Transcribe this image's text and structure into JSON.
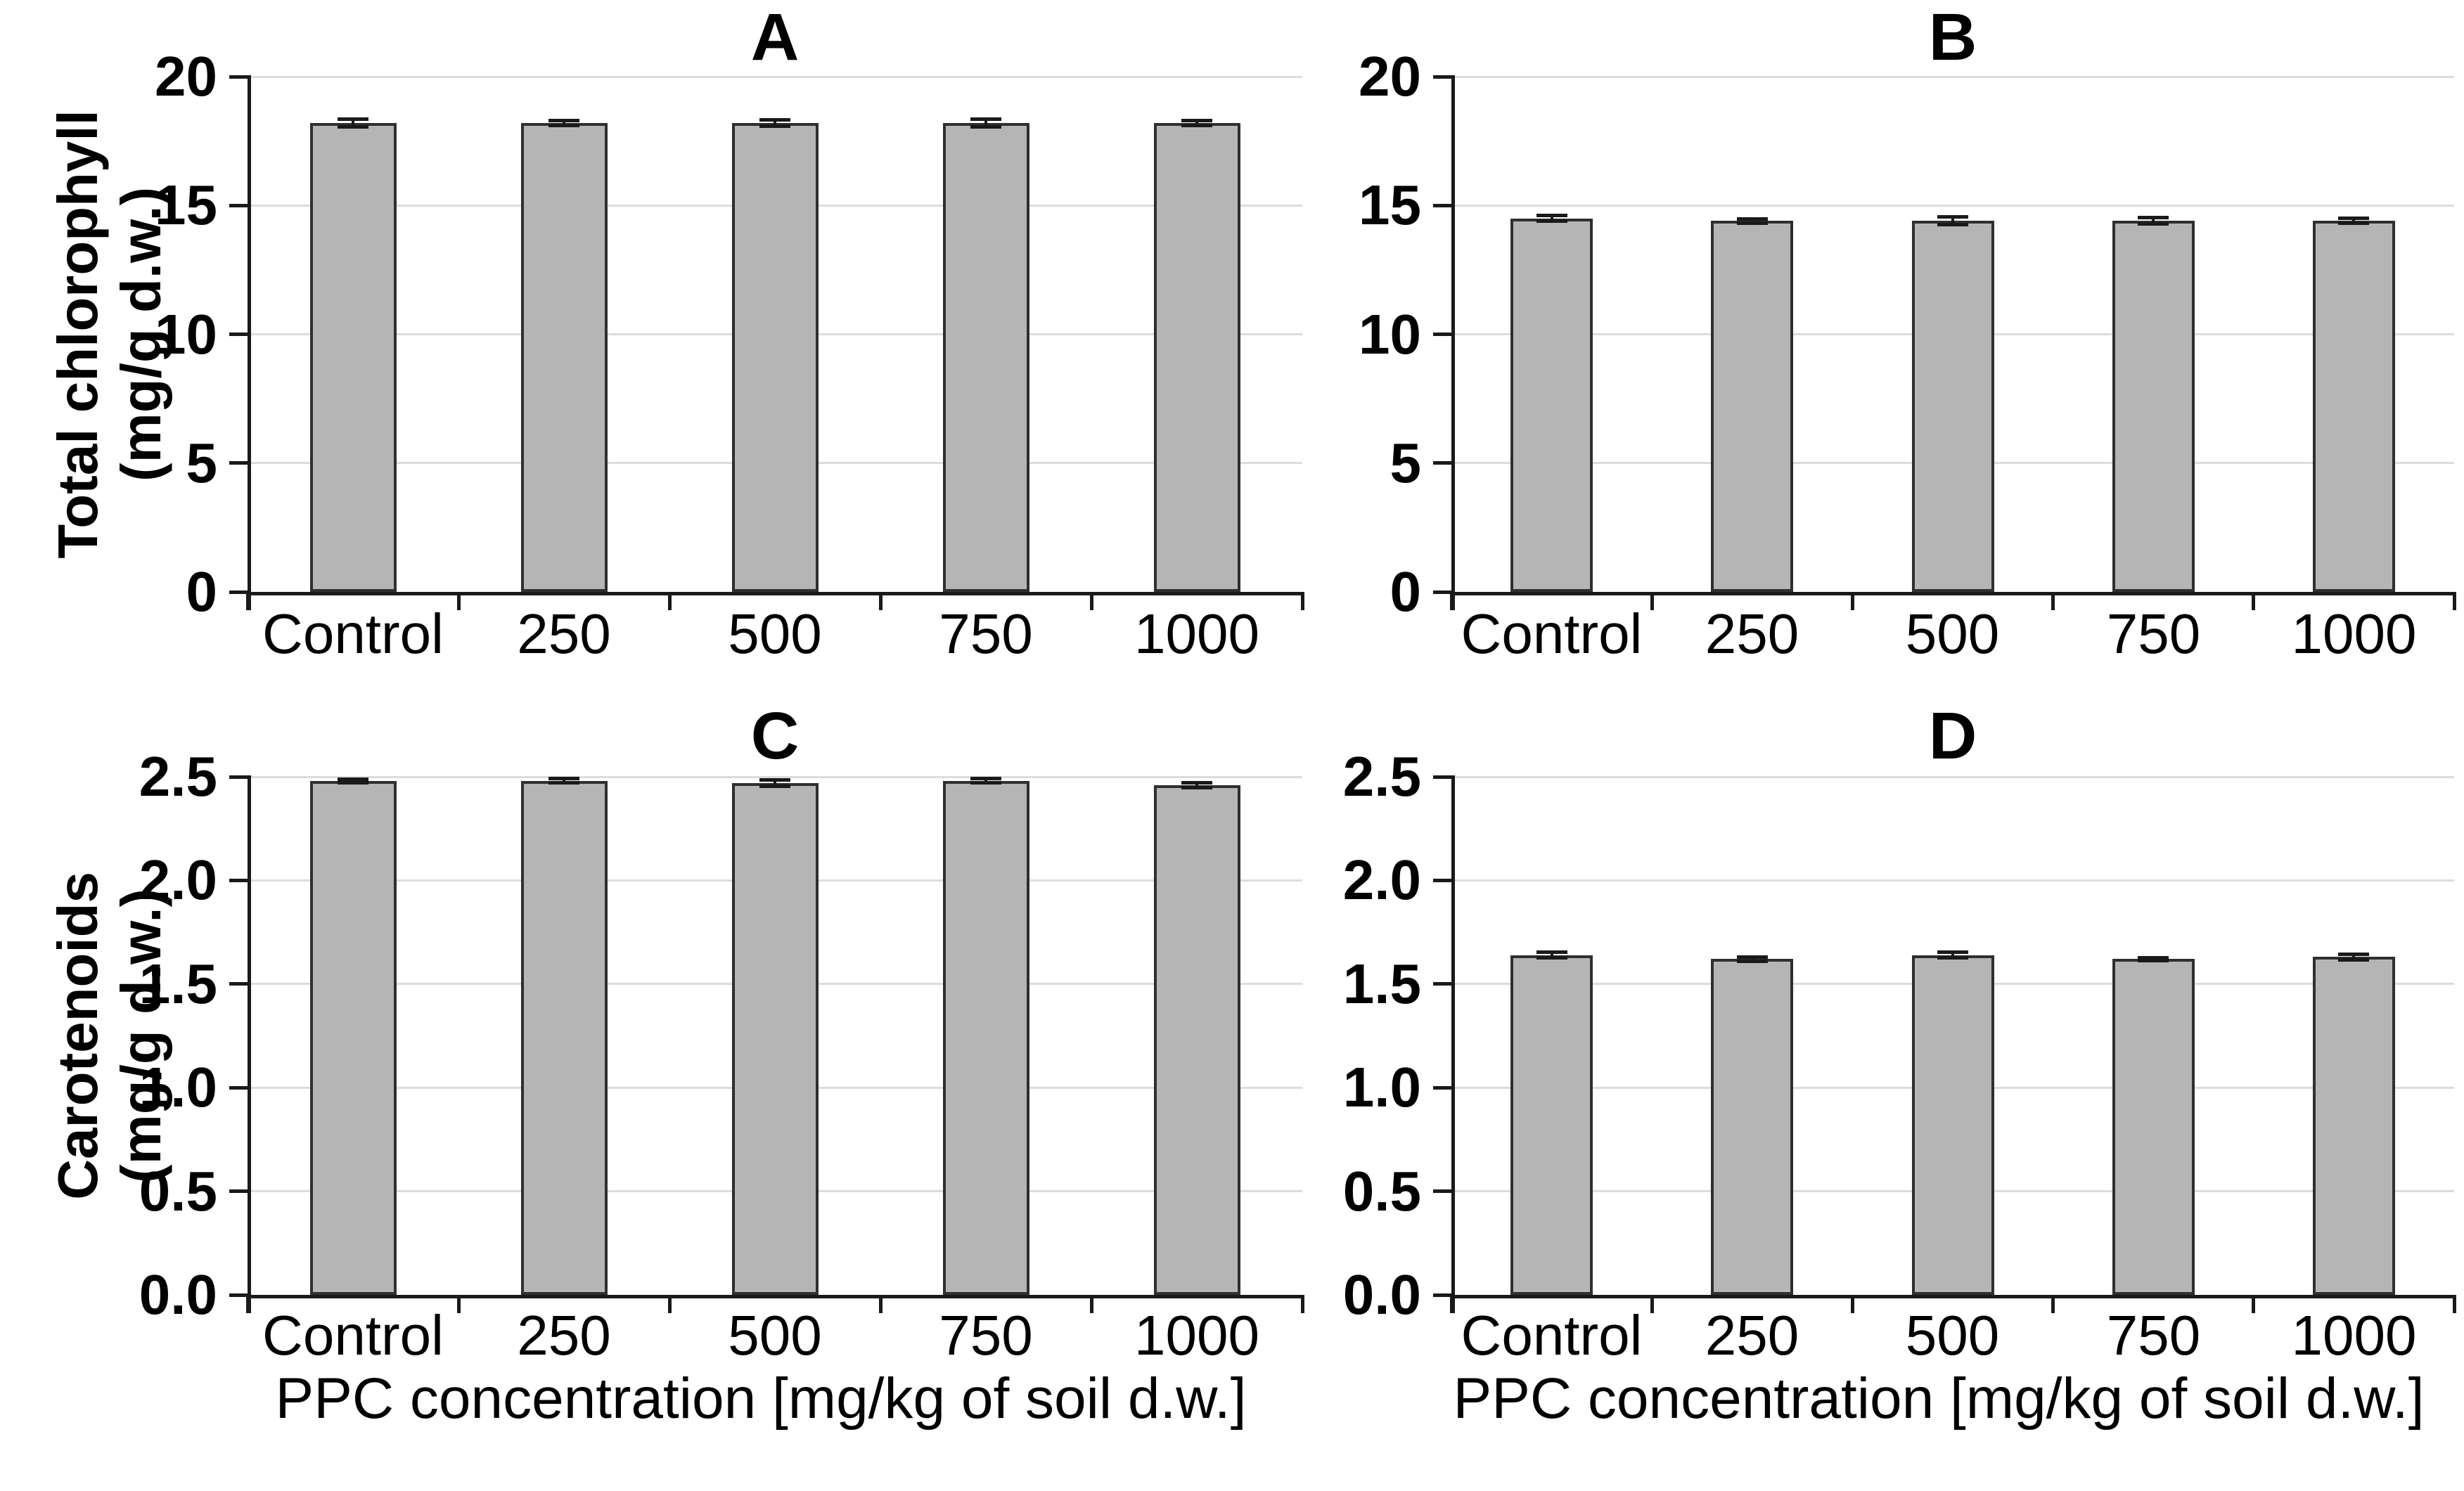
{
  "figure": {
    "background": "#ffffff",
    "bar_fill": "#b5b5b5",
    "bar_border": "#2f2f2f",
    "axis_color": "#1a1a1a",
    "grid_color": "#dcdcdc",
    "error_color": "#1a1a1a",
    "text_color": "#000000"
  },
  "chart_data": [
    {
      "id": "A",
      "type": "bar",
      "title": "A",
      "ylabel_line1": "Total chlorophyll",
      "ylabel_line2": "(mg/g d.w.)",
      "xlabel": "",
      "categories": [
        "Control",
        "250",
        "500",
        "750",
        "1000"
      ],
      "values": [
        18.2,
        18.2,
        18.2,
        18.2,
        18.2
      ],
      "errors": [
        0.15,
        0.1,
        0.12,
        0.15,
        0.1
      ],
      "ylim": [
        0,
        20
      ],
      "ytick_values": [
        0,
        5,
        10,
        15,
        20
      ],
      "ytick_labels": [
        "0",
        "5",
        "10",
        "15",
        "20"
      ],
      "grid": true,
      "legend": null
    },
    {
      "id": "B",
      "type": "bar",
      "title": "B",
      "ylabel_line1": "",
      "ylabel_line2": "",
      "xlabel": "",
      "categories": [
        "Control",
        "250",
        "500",
        "750",
        "1000"
      ],
      "values": [
        14.5,
        14.4,
        14.4,
        14.4,
        14.4
      ],
      "errors": [
        0.12,
        0.08,
        0.15,
        0.12,
        0.1
      ],
      "ylim": [
        0,
        20
      ],
      "ytick_values": [
        0,
        5,
        10,
        15,
        20
      ],
      "ytick_labels": [
        "0",
        "5",
        "10",
        "15",
        "20"
      ],
      "grid": true,
      "legend": null
    },
    {
      "id": "C",
      "type": "bar",
      "title": "C",
      "ylabel_line1": "Carotenoids",
      "ylabel_line2": "(mg/g d.w.)",
      "xlabel": "PPC concentration [mg/kg of soil d.w.]",
      "categories": [
        "Control",
        "250",
        "500",
        "750",
        "1000"
      ],
      "values": [
        2.48,
        2.48,
        2.47,
        2.48,
        2.46
      ],
      "errors": [
        0.008,
        0.01,
        0.015,
        0.01,
        0.012
      ],
      "ylim": [
        0,
        2.5
      ],
      "ytick_values": [
        0,
        0.5,
        1.0,
        1.5,
        2.0,
        2.5
      ],
      "ytick_labels": [
        "0.0",
        "0.5",
        "1.0",
        "1.5",
        "2.0",
        "2.5"
      ],
      "grid": true,
      "legend": null
    },
    {
      "id": "D",
      "type": "bar",
      "title": "D",
      "ylabel_line1": "",
      "ylabel_line2": "",
      "xlabel": "PPC concentration [mg/kg of soil d.w.]",
      "categories": [
        "Control",
        "250",
        "500",
        "750",
        "1000"
      ],
      "values": [
        1.64,
        1.62,
        1.64,
        1.62,
        1.63
      ],
      "errors": [
        0.012,
        0.01,
        0.015,
        0.008,
        0.012
      ],
      "ylim": [
        0,
        2.5
      ],
      "ytick_values": [
        0,
        0.5,
        1.0,
        1.5,
        2.0,
        2.5
      ],
      "ytick_labels": [
        "0.0",
        "0.5",
        "1.0",
        "1.5",
        "2.0",
        "2.5"
      ],
      "grid": true,
      "legend": null
    }
  ]
}
